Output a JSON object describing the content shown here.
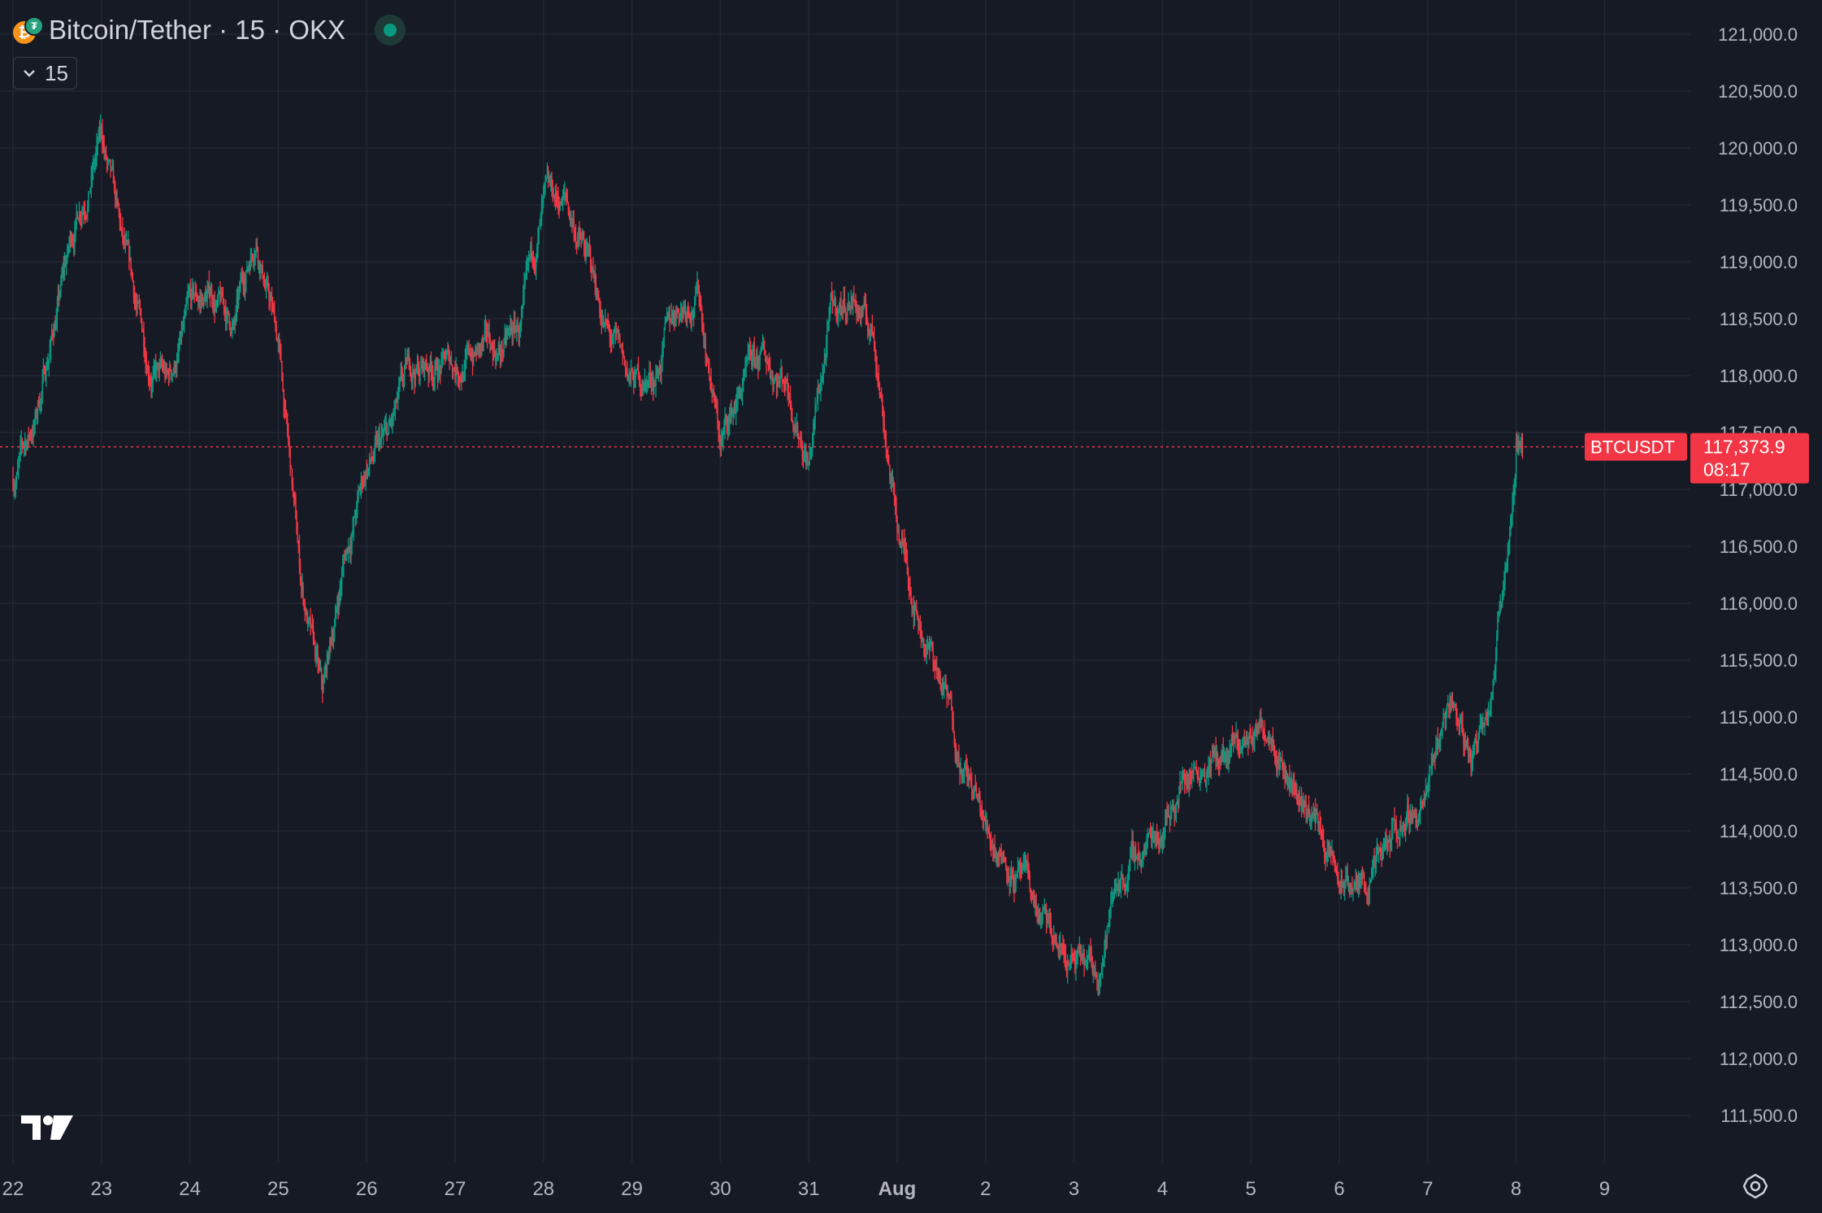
{
  "header": {
    "title": "Bitcoin/Tether · 15 · OKX",
    "interval_button": "15"
  },
  "icons": {
    "coin": "bitcoin-tether-icon",
    "live": "market-open-dot-icon",
    "chevron": "chevron-down-icon",
    "logo": "tradingview-logo-icon",
    "settings": "settings-gear-icon"
  },
  "colors": {
    "background": "#161a25",
    "grid": "#232734",
    "up": "#089981",
    "down": "#f23645",
    "text": "#d1d4dc",
    "axis_text": "#b2b5be"
  },
  "price_axis": {
    "labels": [
      "121,000.0",
      "120,500.0",
      "120,000.0",
      "119,500.0",
      "119,000.0",
      "118,500.0",
      "118,000.0",
      "117,500.0",
      "117,000.0",
      "116,500.0",
      "116,000.0",
      "115,500.0",
      "115,000.0",
      "114,500.0",
      "114,000.0",
      "113,500.0",
      "113,000.0",
      "112,500.0",
      "112,000.0",
      "111,500.0"
    ]
  },
  "last_price": {
    "symbol_label": "BTCUSDT",
    "price": "117,373.9",
    "countdown": "08:17",
    "value": 117373.9
  },
  "time_axis": {
    "labels": [
      "22",
      "23",
      "24",
      "25",
      "26",
      "27",
      "28",
      "29",
      "30",
      "31",
      "Aug",
      "2",
      "3",
      "4",
      "5",
      "6",
      "7",
      "8",
      "9"
    ]
  },
  "chart_data": {
    "type": "line",
    "x_unit": "day (Jul 22 – Aug 9)",
    "x": [
      "Jul 22 00:00",
      "Jul 22 06:00",
      "Jul 22 12:00",
      "Jul 22 18:00",
      "Jul 23 00:00",
      "Jul 23 06:00",
      "Jul 23 12:00",
      "Jul 23 18:00",
      "Jul 24 00:00",
      "Jul 24 06:00",
      "Jul 24 12:00",
      "Jul 24 18:00",
      "Jul 25 00:00",
      "Jul 25 06:00",
      "Jul 25 12:00",
      "Jul 25 18:00",
      "Jul 26 00:00",
      "Jul 26 06:00",
      "Jul 26 12:00",
      "Jul 26 18:00",
      "Jul 27 00:00",
      "Jul 27 06:00",
      "Jul 27 12:00",
      "Jul 27 18:00",
      "Jul 28 00:00",
      "Jul 28 06:00",
      "Jul 28 12:00",
      "Jul 28 18:00",
      "Jul 29 00:00",
      "Jul 29 06:00",
      "Jul 29 12:00",
      "Jul 29 18:00",
      "Jul 30 00:00",
      "Jul 30 06:00",
      "Jul 30 12:00",
      "Jul 30 18:00",
      "Jul 31 00:00",
      "Jul 31 06:00",
      "Jul 31 12:00",
      "Jul 31 18:00",
      "Aug 1 00:00",
      "Aug 1 06:00",
      "Aug 1 12:00",
      "Aug 1 18:00",
      "Aug 2 00:00",
      "Aug 2 06:00",
      "Aug 2 12:00",
      "Aug 2 18:00",
      "Aug 3 00:00",
      "Aug 3 06:00",
      "Aug 3 12:00",
      "Aug 3 18:00",
      "Aug 4 00:00",
      "Aug 4 06:00",
      "Aug 4 12:00",
      "Aug 4 18:00",
      "Aug 5 00:00",
      "Aug 5 06:00",
      "Aug 5 12:00",
      "Aug 5 18:00",
      "Aug 6 00:00",
      "Aug 6 06:00",
      "Aug 6 12:00",
      "Aug 6 18:00",
      "Aug 7 00:00",
      "Aug 7 06:00",
      "Aug 7 12:00",
      "Aug 7 18:00",
      "Aug 8 00:00"
    ],
    "days": [
      0,
      0.25,
      0.5,
      0.75,
      1,
      1.25,
      1.5,
      1.75,
      2,
      2.25,
      2.5,
      2.75,
      3,
      3.25,
      3.5,
      3.75,
      4,
      4.25,
      4.5,
      4.75,
      5,
      5.25,
      5.5,
      5.75,
      6,
      6.25,
      6.5,
      6.75,
      7,
      7.25,
      7.5,
      7.75,
      8,
      8.25,
      8.5,
      8.75,
      9,
      9.25,
      9.5,
      9.75,
      10,
      10.25,
      10.5,
      10.75,
      11,
      11.25,
      11.5,
      11.75,
      12,
      12.25,
      12.5,
      12.75,
      13,
      13.25,
      13.5,
      13.75,
      14,
      14.25,
      14.5,
      14.75,
      15,
      15.25,
      15.5,
      15.75,
      16,
      16.25,
      16.5,
      16.75,
      17
    ],
    "values": [
      117100,
      117600,
      118600,
      119500,
      120100,
      119000,
      118200,
      117900,
      118500,
      118700,
      118400,
      119300,
      118300,
      116200,
      115100,
      116400,
      117200,
      117400,
      118000,
      118100,
      118100,
      118200,
      118200,
      118400,
      119400,
      119500,
      119000,
      118300,
      117900,
      118000,
      118600,
      118800,
      117400,
      117900,
      118100,
      118000,
      117300,
      118500,
      118700,
      118300,
      116700,
      115900,
      115300,
      114600,
      114000,
      113800,
      113400,
      113000,
      112800,
      112700,
      113600,
      113800,
      114100,
      114500,
      114700,
      114600,
      114800,
      115000,
      114400,
      114100,
      113500,
      113500,
      113700,
      114100,
      114300,
      115200,
      114600,
      115500,
      117300
    ],
    "last": 117373.9,
    "ylim": [
      111250,
      121150
    ],
    "xlim": [
      -0.15,
      18.5
    ],
    "grid": true,
    "xlabel": "",
    "ylabel": ""
  }
}
